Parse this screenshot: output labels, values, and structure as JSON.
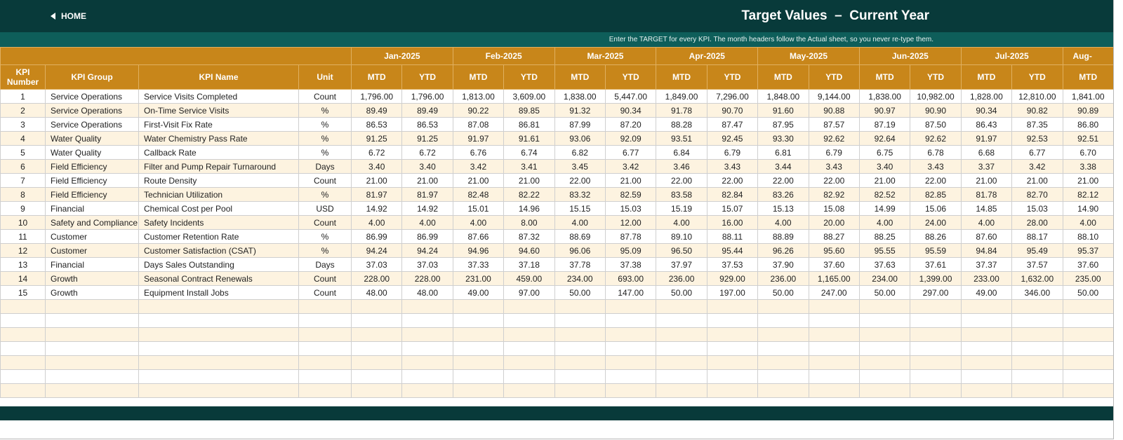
{
  "header": {
    "home": "HOME",
    "title": "Target Values  –  Current Year",
    "subtitle": "Enter the TARGET for every KPI. The month headers follow the Actual sheet, so you never re-type them."
  },
  "table": {
    "columns": [
      "KPI Number",
      "KPI Group",
      "KPI Name",
      "Unit"
    ],
    "months": [
      "Jan-2025",
      "Feb-2025",
      "Mar-2025",
      "Apr-2025",
      "May-2025",
      "Jun-2025",
      "Jul-2025",
      "Aug-"
    ],
    "subheaders": [
      "MTD",
      "YTD",
      "MTD",
      "YTD",
      "MTD",
      "YTD",
      "MTD",
      "YTD",
      "MTD",
      "YTD",
      "MTD",
      "YTD",
      "MTD",
      "YTD",
      "MTD"
    ],
    "rows": [
      [
        "1",
        "Service Operations",
        "Service Visits Completed",
        "Count",
        "1,796.00",
        "1,796.00",
        "1,813.00",
        "3,609.00",
        "1,838.00",
        "5,447.00",
        "1,849.00",
        "7,296.00",
        "1,848.00",
        "9,144.00",
        "1,838.00",
        "10,982.00",
        "1,828.00",
        "12,810.00",
        "1,841.00"
      ],
      [
        "2",
        "Service Operations",
        "On-Time Service Visits",
        "%",
        "89.49",
        "89.49",
        "90.22",
        "89.85",
        "91.32",
        "90.34",
        "91.78",
        "90.70",
        "91.60",
        "90.88",
        "90.97",
        "90.90",
        "90.34",
        "90.82",
        "90.89"
      ],
      [
        "3",
        "Service Operations",
        "First-Visit Fix Rate",
        "%",
        "86.53",
        "86.53",
        "87.08",
        "86.81",
        "87.99",
        "87.20",
        "88.28",
        "87.47",
        "87.95",
        "87.57",
        "87.19",
        "87.50",
        "86.43",
        "87.35",
        "86.80"
      ],
      [
        "4",
        "Water Quality",
        "Water Chemistry Pass Rate",
        "%",
        "91.25",
        "91.25",
        "91.97",
        "91.61",
        "93.06",
        "92.09",
        "93.51",
        "92.45",
        "93.30",
        "92.62",
        "92.64",
        "92.62",
        "91.97",
        "92.53",
        "92.51"
      ],
      [
        "5",
        "Water Quality",
        "Callback Rate",
        "%",
        "6.72",
        "6.72",
        "6.76",
        "6.74",
        "6.82",
        "6.77",
        "6.84",
        "6.79",
        "6.81",
        "6.79",
        "6.75",
        "6.78",
        "6.68",
        "6.77",
        "6.70"
      ],
      [
        "6",
        "Field Efficiency",
        "Filter and Pump Repair Turnaround",
        "Days",
        "3.40",
        "3.40",
        "3.42",
        "3.41",
        "3.45",
        "3.42",
        "3.46",
        "3.43",
        "3.44",
        "3.43",
        "3.40",
        "3.43",
        "3.37",
        "3.42",
        "3.38"
      ],
      [
        "7",
        "Field Efficiency",
        "Route Density",
        "Count",
        "21.00",
        "21.00",
        "21.00",
        "21.00",
        "22.00",
        "21.00",
        "22.00",
        "22.00",
        "22.00",
        "22.00",
        "21.00",
        "22.00",
        "21.00",
        "21.00",
        "21.00"
      ],
      [
        "8",
        "Field Efficiency",
        "Technician Utilization",
        "%",
        "81.97",
        "81.97",
        "82.48",
        "82.22",
        "83.32",
        "82.59",
        "83.58",
        "82.84",
        "83.26",
        "82.92",
        "82.52",
        "82.85",
        "81.78",
        "82.70",
        "82.12"
      ],
      [
        "9",
        "Financial",
        "Chemical Cost per Pool",
        "USD",
        "14.92",
        "14.92",
        "15.01",
        "14.96",
        "15.15",
        "15.03",
        "15.19",
        "15.07",
        "15.13",
        "15.08",
        "14.99",
        "15.06",
        "14.85",
        "15.03",
        "14.90"
      ],
      [
        "10",
        "Safety and Compliance",
        "Safety Incidents",
        "Count",
        "4.00",
        "4.00",
        "4.00",
        "8.00",
        "4.00",
        "12.00",
        "4.00",
        "16.00",
        "4.00",
        "20.00",
        "4.00",
        "24.00",
        "4.00",
        "28.00",
        "4.00"
      ],
      [
        "11",
        "Customer",
        "Customer Retention Rate",
        "%",
        "86.99",
        "86.99",
        "87.66",
        "87.32",
        "88.69",
        "87.78",
        "89.10",
        "88.11",
        "88.89",
        "88.27",
        "88.25",
        "88.26",
        "87.60",
        "88.17",
        "88.10"
      ],
      [
        "12",
        "Customer",
        "Customer Satisfaction (CSAT)",
        "%",
        "94.24",
        "94.24",
        "94.96",
        "94.60",
        "96.06",
        "95.09",
        "96.50",
        "95.44",
        "96.26",
        "95.60",
        "95.55",
        "95.59",
        "94.84",
        "95.49",
        "95.37"
      ],
      [
        "13",
        "Financial",
        "Days Sales Outstanding",
        "Days",
        "37.03",
        "37.03",
        "37.33",
        "37.18",
        "37.78",
        "37.38",
        "37.97",
        "37.53",
        "37.90",
        "37.60",
        "37.63",
        "37.61",
        "37.37",
        "37.57",
        "37.60"
      ],
      [
        "14",
        "Growth",
        "Seasonal Contract Renewals",
        "Count",
        "228.00",
        "228.00",
        "231.00",
        "459.00",
        "234.00",
        "693.00",
        "236.00",
        "929.00",
        "236.00",
        "1,165.00",
        "234.00",
        "1,399.00",
        "233.00",
        "1,632.00",
        "235.00"
      ],
      [
        "15",
        "Growth",
        "Equipment Install Jobs",
        "Count",
        "48.00",
        "48.00",
        "49.00",
        "97.00",
        "50.00",
        "147.00",
        "50.00",
        "197.00",
        "50.00",
        "247.00",
        "50.00",
        "297.00",
        "49.00",
        "346.00",
        "50.00"
      ]
    ]
  }
}
